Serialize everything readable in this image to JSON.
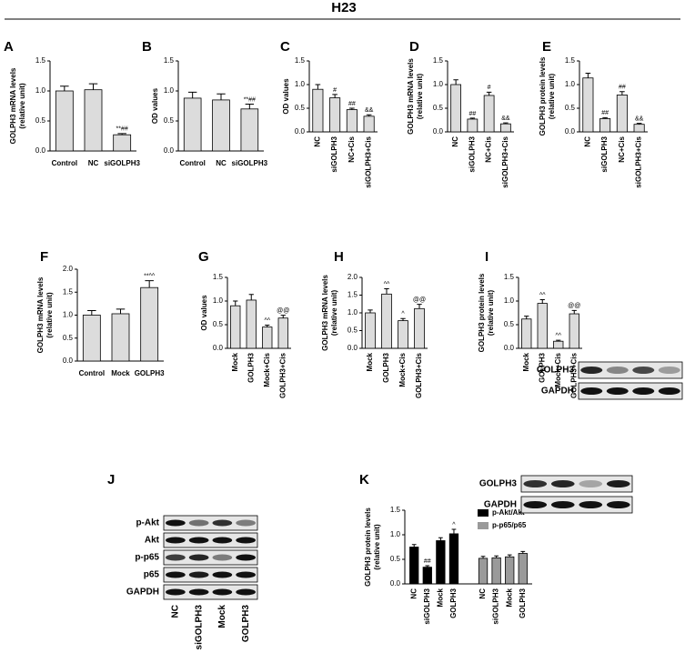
{
  "title": "H23",
  "chart_data": [
    {
      "type": "bar",
      "panel": "A",
      "ylabel": [
        "GOLPH3 mRNA levels",
        "(relative unit)"
      ],
      "categories": [
        "Control",
        "NC",
        "siGOLPH3"
      ],
      "values": [
        1.0,
        1.02,
        0.27
      ],
      "errors": [
        0.08,
        0.1,
        0.02
      ],
      "annotations": [
        null,
        null,
        "**##"
      ],
      "color": "#dcdcdc",
      "rotate_labels": false,
      "ylim": [
        0,
        1.5
      ],
      "yticks": [
        {
          "value": 0,
          "label": "0.0"
        },
        0.5,
        {
          "value": 1,
          "label": "1.0"
        },
        1.5
      ]
    },
    {
      "type": "bar",
      "panel": "B",
      "ylabel": [
        "OD values"
      ],
      "categories": [
        "Control",
        "NC",
        "siGOLPH3"
      ],
      "values": [
        0.88,
        0.85,
        0.7
      ],
      "errors": [
        0.1,
        0.1,
        0.08
      ],
      "annotations": [
        null,
        null,
        "**##"
      ],
      "color": "#dcdcdc",
      "rotate_labels": false,
      "ylim": [
        0,
        1.5
      ],
      "yticks": [
        {
          "value": 0,
          "label": "0.0"
        },
        0.5,
        {
          "value": 1,
          "label": "1.0"
        },
        1.5
      ]
    },
    {
      "type": "bar",
      "panel": "C",
      "ylabel": [
        "OD values"
      ],
      "categories": [
        "NC",
        "siGOLPH3",
        "NC+Cis",
        "siGOLPH3+Cis"
      ],
      "values": [
        0.9,
        0.72,
        0.47,
        0.33
      ],
      "errors": [
        0.1,
        0.07,
        0.03,
        0.03
      ],
      "annotations": [
        null,
        "#",
        "##",
        "&&"
      ],
      "color": "#dcdcdc",
      "rotate_labels": true,
      "ylim": [
        0,
        1.5
      ],
      "yticks": [
        {
          "value": 0,
          "label": "0.0"
        },
        0.5,
        {
          "value": 1,
          "label": "1.0"
        },
        1.5
      ]
    },
    {
      "type": "bar",
      "panel": "D",
      "ylabel": [
        "GOLPH3 mRNA levels",
        "(relative unit)"
      ],
      "categories": [
        "NC",
        "siGOLPH3",
        "NC+Cis",
        "siGOLPH3+Cis"
      ],
      "values": [
        1.0,
        0.27,
        0.77,
        0.17
      ],
      "errors": [
        0.1,
        0.02,
        0.07,
        0.02
      ],
      "annotations": [
        null,
        "##",
        "#",
        "&&"
      ],
      "color": "#dcdcdc",
      "rotate_labels": true,
      "ylim": [
        0,
        1.5
      ],
      "yticks": [
        {
          "value": 0,
          "label": "0.0"
        },
        0.5,
        {
          "value": 1,
          "label": "1.0"
        },
        1.5
      ]
    },
    {
      "type": "bar",
      "panel": "E",
      "ylabel": [
        "GOLPH3 protein levels",
        "(relative unit)"
      ],
      "categories": [
        "NC",
        "siGOLPH3",
        "NC+Cis",
        "siGOLPH3+Cis"
      ],
      "values": [
        1.14,
        0.28,
        0.78,
        0.16
      ],
      "errors": [
        0.1,
        0.02,
        0.07,
        0.02
      ],
      "annotations": [
        null,
        "##",
        "##",
        "&&"
      ],
      "color": "#dcdcdc",
      "rotate_labels": true,
      "ylim": [
        0,
        1.5
      ],
      "yticks": [
        {
          "value": 0,
          "label": "0.0"
        },
        0.5,
        {
          "value": 1,
          "label": "1.0"
        },
        1.5
      ]
    },
    {
      "type": "bar",
      "panel": "F",
      "ylabel": [
        "GOLPH3 mRNA levels",
        "(relative unit)"
      ],
      "categories": [
        "Control",
        "Mock",
        "GOLPH3"
      ],
      "values": [
        1.0,
        1.03,
        1.6
      ],
      "errors": [
        0.1,
        0.1,
        0.15
      ],
      "annotations": [
        null,
        null,
        "**^^"
      ],
      "color": "#dcdcdc",
      "rotate_labels": false,
      "ylim": [
        0,
        2
      ],
      "yticks": [
        {
          "value": 0,
          "label": "0.0"
        },
        0.5,
        {
          "value": 1,
          "label": "1.0"
        },
        1.5,
        {
          "value": 2,
          "label": "2.0"
        }
      ]
    },
    {
      "type": "bar",
      "panel": "G",
      "ylabel": [
        "OD values"
      ],
      "categories": [
        "Mock",
        "GOLPH3",
        "Mock+Cis",
        "GOLPH3+Cis"
      ],
      "values": [
        0.9,
        1.02,
        0.45,
        0.64
      ],
      "errors": [
        0.1,
        0.12,
        0.04,
        0.06
      ],
      "annotations": [
        null,
        null,
        "^^",
        "@@"
      ],
      "color": "#dcdcdc",
      "rotate_labels": true,
      "ylim": [
        0,
        1.5
      ],
      "yticks": [
        {
          "value": 0,
          "label": "0.0"
        },
        0.5,
        {
          "value": 1,
          "label": "1.0"
        },
        1.5
      ]
    },
    {
      "type": "bar",
      "panel": "H",
      "ylabel": [
        "GOLPH3 mRNA levels",
        "(relative unit)"
      ],
      "categories": [
        "Mock",
        "GOLPH3",
        "Mock+Cis",
        "GOLPH3+Cis"
      ],
      "values": [
        1.0,
        1.53,
        0.78,
        1.12
      ],
      "errors": [
        0.08,
        0.15,
        0.06,
        0.12
      ],
      "annotations": [
        null,
        "^^",
        "^",
        "@@"
      ],
      "color": "#dcdcdc",
      "rotate_labels": true,
      "ylim": [
        0,
        2
      ],
      "yticks": [
        {
          "value": 0,
          "label": "0.0"
        },
        0.5,
        {
          "value": 1,
          "label": "1.0"
        },
        1.5,
        {
          "value": 2,
          "label": "2.0"
        }
      ]
    },
    {
      "type": "bar",
      "panel": "I",
      "ylabel": [
        "GOLPH3 protein levels",
        "(relative unit)"
      ],
      "categories": [
        "Mock",
        "GOLPH3",
        "Mock+Cis",
        "GOLPH3+Cis"
      ],
      "values": [
        0.62,
        0.95,
        0.15,
        0.73
      ],
      "errors": [
        0.06,
        0.08,
        0.02,
        0.07
      ],
      "annotations": [
        null,
        "^^",
        "^^",
        "@@"
      ],
      "color": "#dcdcdc",
      "rotate_labels": true,
      "ylim": [
        0,
        1.5
      ],
      "yticks": [
        {
          "value": 0,
          "label": "0.0"
        },
        0.5,
        {
          "value": 1,
          "label": "1.0"
        },
        1.5
      ]
    },
    {
      "type": "grouped_bar",
      "panel": "K",
      "ylabel": [
        "GOLPH3 protein levels",
        "(relative unit)"
      ],
      "categories": [
        "NC",
        "siGOLPH3",
        "Mock",
        "GOLPH3"
      ],
      "rotate_labels": true,
      "legend": "upper right",
      "ylim": [
        0,
        1.5
      ],
      "yticks": [
        {
          "value": 0,
          "label": "0.0"
        },
        0.5,
        {
          "value": 1,
          "label": "1.0"
        },
        1.5
      ],
      "series": [
        {
          "name": "p-Akt/Akt",
          "color": "#000000",
          "values": [
            0.75,
            0.34,
            0.88,
            1.02
          ],
          "errors": [
            0.05,
            0.03,
            0.06,
            0.09
          ],
          "annotations": [
            null,
            "##",
            null,
            "^"
          ]
        },
        {
          "name": "p-p65/p65",
          "color": "#9a9a9a",
          "values": [
            0.52,
            0.53,
            0.55,
            0.62
          ],
          "errors": [
            0.04,
            0.04,
            0.04,
            0.04
          ],
          "annotations": [
            null,
            null,
            null,
            null
          ]
        }
      ]
    }
  ],
  "blots": [
    {
      "rows": [
        "GOLPH3",
        "GAPDH"
      ]
    },
    {
      "rows": [
        "GOLPH3",
        "GAPDH"
      ]
    },
    {
      "panel": "J",
      "rows": [
        "p-Akt",
        "Akt",
        "p-p65",
        "p65",
        "GAPDH"
      ],
      "lanes": [
        "NC",
        "siGOLPH3",
        "Mock",
        "GOLPH3"
      ]
    }
  ]
}
